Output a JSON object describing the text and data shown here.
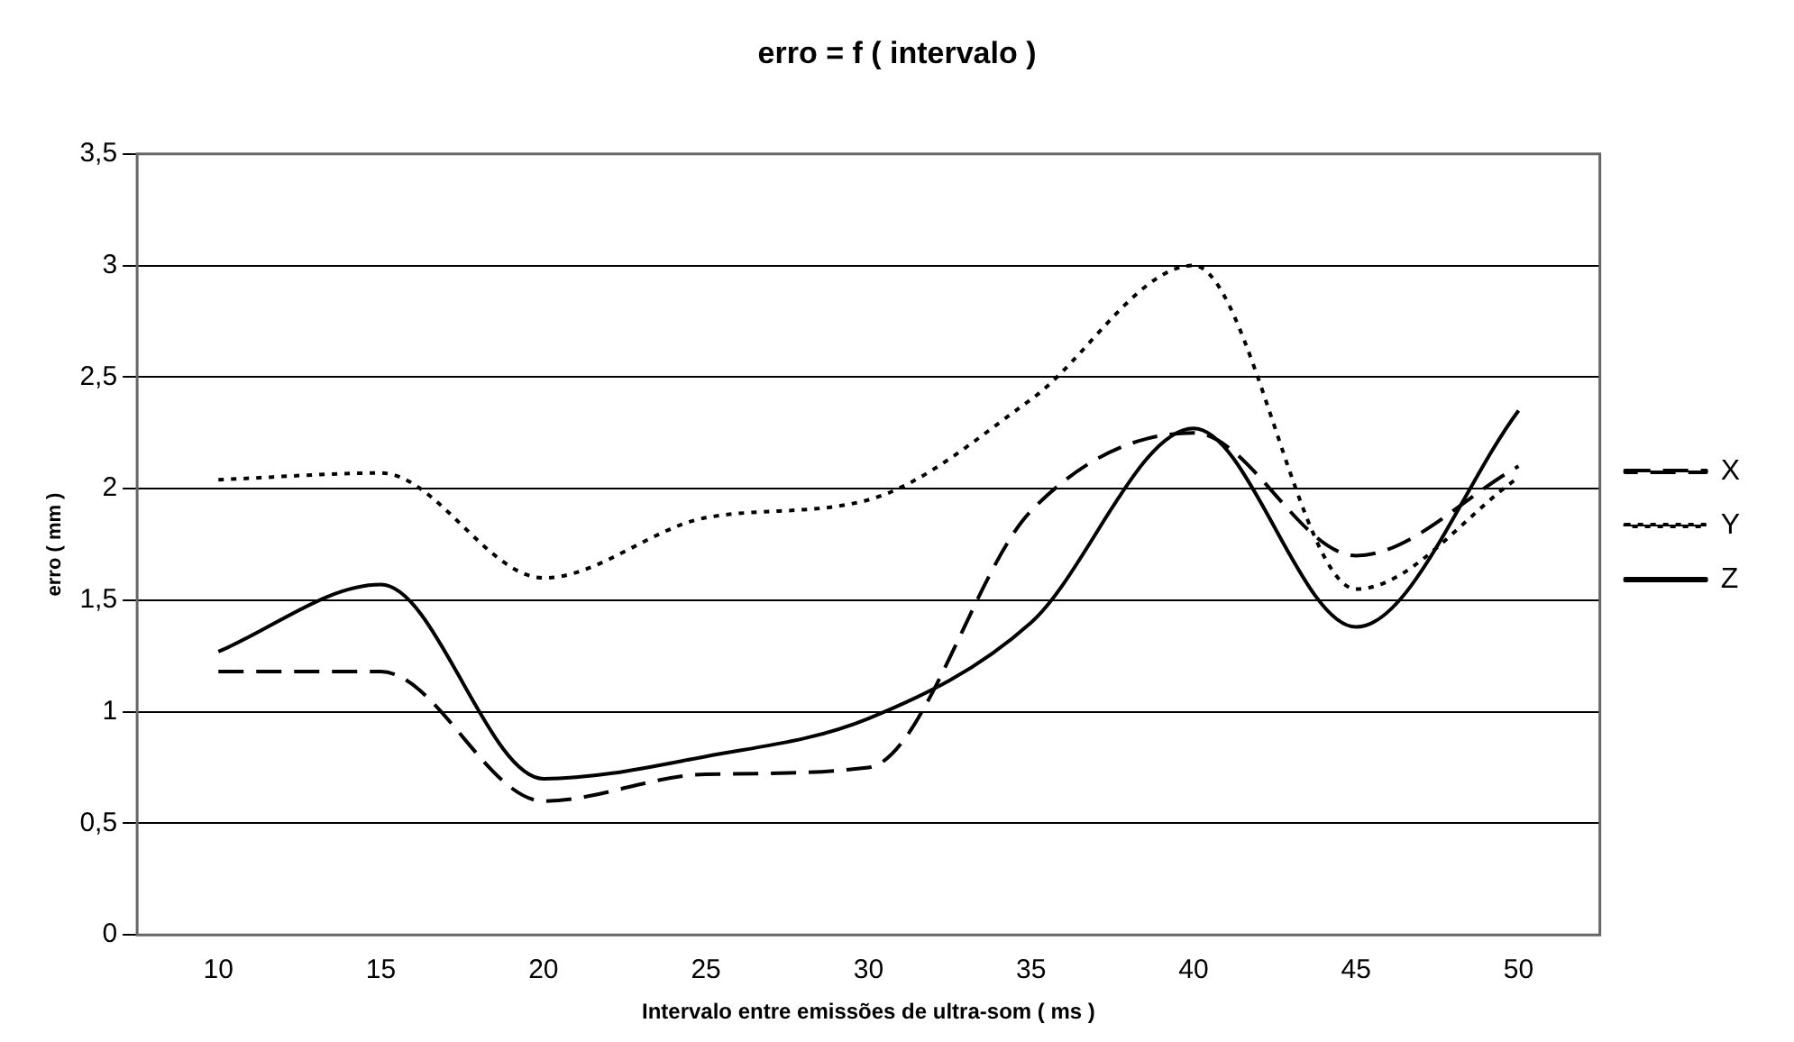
{
  "chart_data": {
    "type": "line",
    "title": "erro = f ( intervalo )",
    "xlabel": "Intervalo entre emissões de ultra-som ( ms )",
    "ylabel": "erro ( mm )",
    "categories": [
      "10",
      "15",
      "20",
      "25",
      "30",
      "35",
      "40",
      "45",
      "50"
    ],
    "series": [
      {
        "name": "X",
        "color": "#000000",
        "line_style": "dashed",
        "values": [
          1.18,
          1.18,
          0.6,
          0.72,
          0.75,
          1.9,
          2.25,
          1.7,
          2.1
        ]
      },
      {
        "name": "Y",
        "color": "#000000",
        "line_style": "dotted",
        "values": [
          2.04,
          2.07,
          1.6,
          1.87,
          1.95,
          2.4,
          3.0,
          1.55,
          2.05
        ]
      },
      {
        "name": "Z",
        "color": "#000000",
        "line_style": "solid",
        "values": [
          1.27,
          1.57,
          0.7,
          0.8,
          0.97,
          1.4,
          2.27,
          1.38,
          2.35
        ]
      }
    ],
    "ylim": [
      0,
      3.5
    ],
    "yticks": [
      0,
      {
        "value": 0.5,
        "label": "0,5"
      },
      1,
      {
        "value": 1.5,
        "label": "1,5"
      },
      2,
      {
        "value": 2.5,
        "label": "2,5"
      },
      3,
      {
        "value": 3.5,
        "label": "3,5"
      }
    ],
    "grid": "y",
    "legend": "right",
    "marker": "none"
  }
}
